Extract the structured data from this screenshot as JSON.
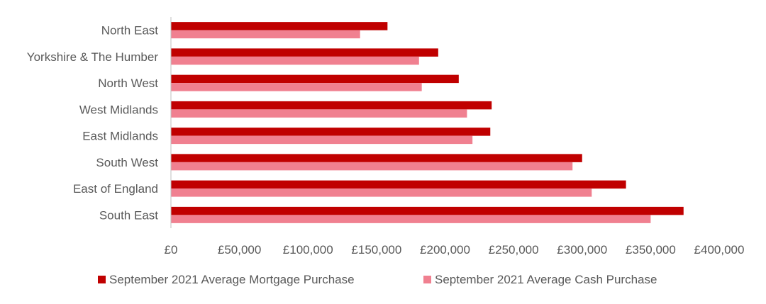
{
  "chart_data": {
    "type": "bar",
    "orientation": "horizontal",
    "categories": [
      "North East",
      "Yorkshire & The Humber",
      "North West",
      "West Midlands",
      "East Midlands",
      "South West",
      "East of England",
      "South East"
    ],
    "series": [
      {
        "name": "September 2021 Average Mortgage Purchase",
        "color": "#c00000",
        "values": [
          158000,
          195000,
          210000,
          234000,
          233000,
          300000,
          332000,
          374000
        ]
      },
      {
        "name": "September 2021 Average Cash Purchase",
        "color": "#f08090",
        "values": [
          138000,
          181000,
          183000,
          216000,
          220000,
          293000,
          307000,
          350000
        ]
      }
    ],
    "xlim": [
      0,
      400000
    ],
    "x_ticks": [
      0,
      50000,
      100000,
      150000,
      200000,
      250000,
      300000,
      350000,
      400000
    ],
    "x_tick_labels": [
      "£0",
      "£50,000",
      "£100,000",
      "£150,000",
      "£200,000",
      "£250,000",
      "£300,000",
      "£350,000",
      "£400,000"
    ],
    "grid": false,
    "legend_position": "bottom",
    "title": "",
    "xlabel": "",
    "ylabel": ""
  }
}
